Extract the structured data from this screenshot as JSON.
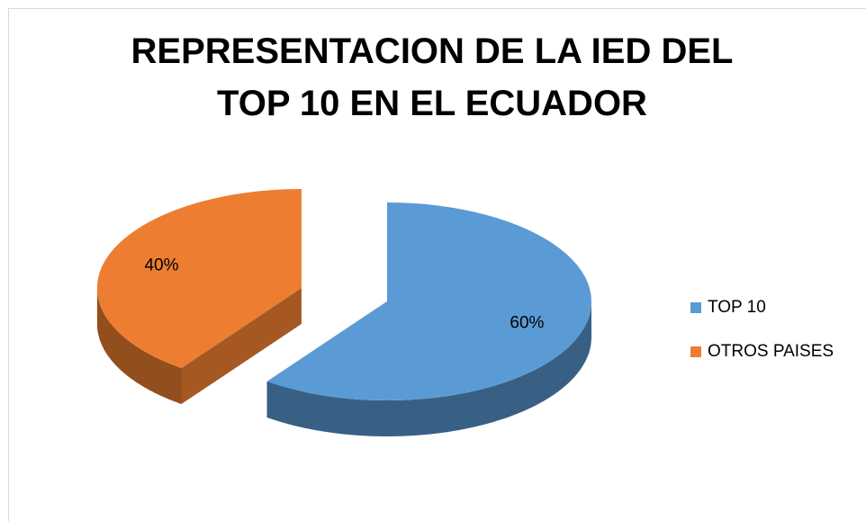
{
  "chart_data": {
    "type": "pie",
    "title": "REPRESENTACION DE LA IED DEL TOP 10 EN EL ECUADOR",
    "categories": [
      "TOP 10",
      "OTROS PAISES"
    ],
    "values": [
      60,
      40
    ],
    "value_labels": [
      "60%",
      "40%"
    ],
    "colors": [
      "#5b9bd5",
      "#ed7d31"
    ],
    "legend": "right",
    "three_d": true,
    "exploded": [
      false,
      true
    ]
  }
}
